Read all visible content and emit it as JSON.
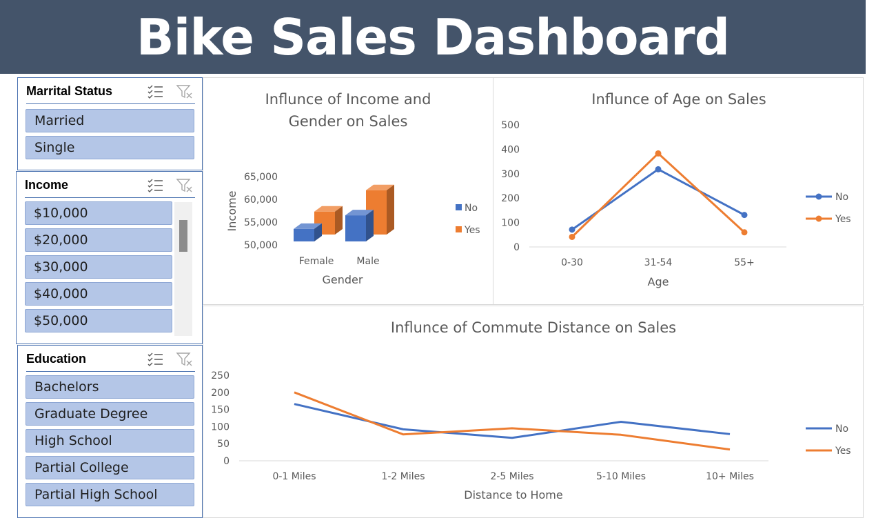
{
  "header": {
    "title": "Bike Sales Dashboard"
  },
  "colors": {
    "banner": "#44546a",
    "no": "#4472c4",
    "yes": "#ed7d31",
    "slicer_button": "#b4c6e7",
    "slicer_border": "#4a72b0"
  },
  "slicers": {
    "marital_status": {
      "title": "Marrital Status",
      "items": [
        "Married",
        "Single"
      ]
    },
    "income": {
      "title": "Income",
      "items": [
        "$10,000",
        "$20,000",
        "$30,000",
        "$40,000",
        "$50,000"
      ]
    },
    "education": {
      "title": "Education",
      "items": [
        "Bachelors",
        "Graduate Degree",
        "High School",
        "Partial College",
        "Partial High School"
      ]
    },
    "icons": [
      "multi-select-icon",
      "clear-filter-icon"
    ]
  },
  "chart_data": [
    {
      "type": "bar",
      "title": "Influnce of Income and Gender on Sales",
      "title_lines": [
        "Influnce of Income and",
        "Gender on Sales"
      ],
      "xlabel": "Gender",
      "ylabel": "Income",
      "categories": [
        "Female",
        "Male"
      ],
      "series": [
        {
          "name": "No",
          "values": [
            53500,
            56500
          ]
        },
        {
          "name": "Yes",
          "values": [
            55800,
            60500
          ]
        }
      ],
      "ylim": [
        50000,
        65000
      ],
      "yticks": [
        "65,000",
        "60,000",
        "55,000",
        "50,000"
      ],
      "legend": "right",
      "style": "3d-clustered"
    },
    {
      "type": "line",
      "title": "Influnce of Age on Sales",
      "xlabel": "Age",
      "ylabel": "",
      "categories": [
        "0-30",
        "31-54",
        "55+"
      ],
      "series": [
        {
          "name": "No",
          "values": [
            71,
            318,
            131
          ]
        },
        {
          "name": "Yes",
          "values": [
            41,
            383,
            60
          ]
        }
      ],
      "ylim": [
        0,
        500
      ],
      "yticks": [
        "500",
        "400",
        "300",
        "200",
        "100",
        "0"
      ],
      "markers": true,
      "legend": "right"
    },
    {
      "type": "line",
      "title": "Influnce of Commute Distance on Sales",
      "xlabel": "Distance to Home",
      "ylabel": "",
      "categories": [
        "0-1 Miles",
        "1-2 Miles",
        "2-5 Miles",
        "5-10 Miles",
        "10+ Miles"
      ],
      "series": [
        {
          "name": "No",
          "values": [
            166,
            92,
            67,
            114,
            78
          ]
        },
        {
          "name": "Yes",
          "values": [
            200,
            77,
            95,
            76,
            33
          ]
        }
      ],
      "ylim": [
        0,
        250
      ],
      "yticks": [
        "250",
        "200",
        "150",
        "100",
        "50",
        "0"
      ],
      "markers": false,
      "legend": "right"
    }
  ]
}
